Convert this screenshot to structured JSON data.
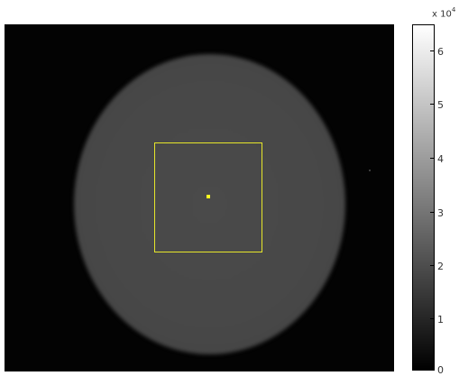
{
  "colorbar": {
    "exponent_base": "x 10",
    "exponent_power": "4",
    "ticks": [
      {
        "label": "0",
        "value": 0
      },
      {
        "label": "1",
        "value": 1
      },
      {
        "label": "2",
        "value": 2
      },
      {
        "label": "3",
        "value": 3
      },
      {
        "label": "4",
        "value": 4
      },
      {
        "label": "5",
        "value": 5
      },
      {
        "label": "6",
        "value": 6
      }
    ],
    "colormap": "gray"
  },
  "image": {
    "background_color": "#030303",
    "phantom_color": "#4a4a4a",
    "roi_color": "#e6e62a",
    "marker_color": "#ffff20"
  }
}
